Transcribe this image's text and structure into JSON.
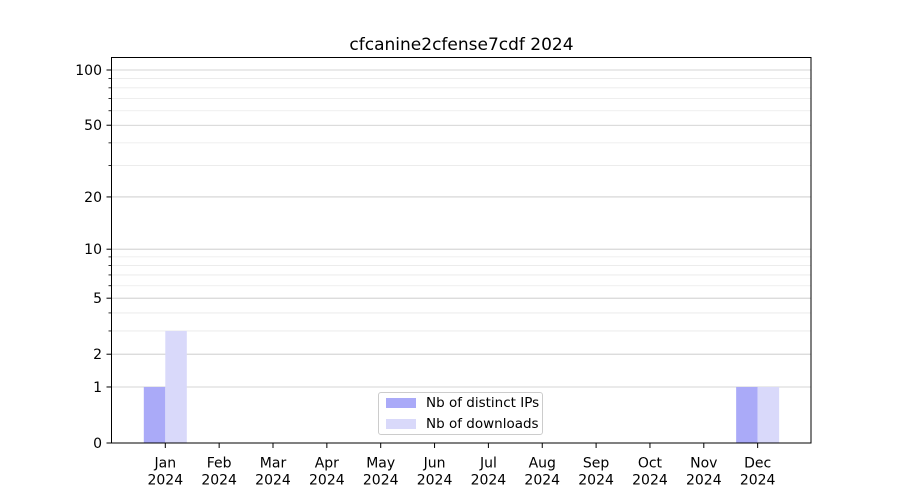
{
  "chart_data": {
    "type": "bar",
    "title": "cfcanine2cfense7cdf 2024",
    "categories": [
      "Jan 2024",
      "Feb 2024",
      "Mar 2024",
      "Apr 2024",
      "May 2024",
      "Jun 2024",
      "Jul 2024",
      "Aug 2024",
      "Sep 2024",
      "Oct 2024",
      "Nov 2024",
      "Dec 2024"
    ],
    "series": [
      {
        "name": "Nb of distinct IPs",
        "color": "#aaaaf8",
        "values": [
          1,
          0,
          0,
          0,
          0,
          0,
          0,
          0,
          0,
          0,
          0,
          1
        ]
      },
      {
        "name": "Nb of downloads",
        "color": "#d9d9fa",
        "values": [
          3,
          0,
          0,
          0,
          0,
          0,
          0,
          0,
          0,
          0,
          0,
          1
        ]
      }
    ],
    "xlabel": "",
    "ylabel": "",
    "y_scale": "log1p",
    "ylim": [
      0,
      100
    ],
    "y_ticks_major": [
      0,
      1,
      2,
      5,
      10,
      20,
      50,
      100
    ],
    "y_ticks_minor": [
      3,
      4,
      6,
      7,
      8,
      9,
      30,
      40,
      60,
      70,
      80,
      90
    ],
    "grid": true,
    "legend": {
      "position": "lower center",
      "entries": [
        "Nb of distinct IPs",
        "Nb of downloads"
      ]
    }
  },
  "colors": {
    "background": "#ffffff",
    "bar_distinct_ips": "#aaaaf8",
    "bar_downloads": "#d9d9fa",
    "grid_major": "#c6c6c6",
    "grid_minor": "#e9e9e9",
    "spine": "#000000",
    "text": "#000000",
    "legend_border": "#cccccc"
  }
}
